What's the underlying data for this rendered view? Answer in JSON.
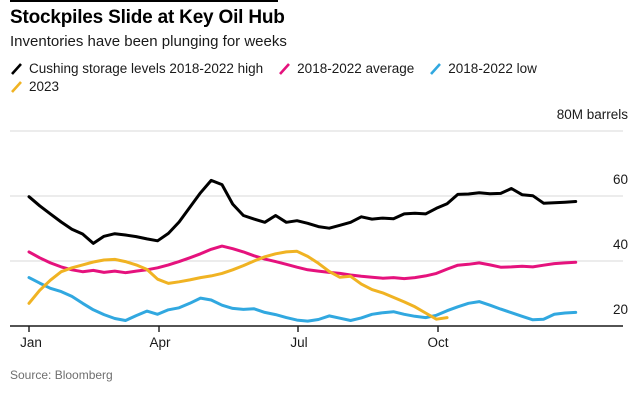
{
  "header": {
    "title": "Stockpiles Slide at Key Oil Hub",
    "subtitle": "Inventories have been plunging for weeks"
  },
  "legend": {
    "items": [
      {
        "label": "Cushing storage levels 2018-2022 high",
        "color": "#000000"
      },
      {
        "label": "2018-2022 average",
        "color": "#e5127d"
      },
      {
        "label": "2018-2022 low",
        "color": "#31a8e0"
      },
      {
        "label": "2023",
        "color": "#f0b323"
      }
    ]
  },
  "axis": {
    "unit_label": "80M barrels",
    "y_tick_labels": [
      "60",
      "40",
      "20"
    ],
    "x_tick_labels": [
      "Jan",
      "Apr",
      "Jul",
      "Oct"
    ]
  },
  "source": "Source: Bloomberg",
  "chart_data": {
    "type": "line",
    "title": "Stockpiles Slide at Key Oil Hub",
    "subtitle": "Inventories have been plunging for weeks",
    "xlabel": "",
    "ylabel": "80M barrels",
    "x_mode": "weekly, Jan through Dec (index 0-51)",
    "x_tick_labels": [
      "Jan",
      "Apr",
      "Jul",
      "Oct"
    ],
    "ylim": [
      20,
      80
    ],
    "y_gridlines": [
      80,
      60,
      40,
      20
    ],
    "grid": true,
    "legend_position": "top",
    "series": [
      {
        "name": "Cushing storage levels 2018-2022 high",
        "color": "#000000",
        "values": [
          59.8,
          57.0,
          54.5,
          52.0,
          49.8,
          48.3,
          45.4,
          47.6,
          48.4,
          48.0,
          47.5,
          46.8,
          46.2,
          48.5,
          52.0,
          56.5,
          61.0,
          64.8,
          63.5,
          57.5,
          54.0,
          52.9,
          51.9,
          54.0,
          51.9,
          52.4,
          51.6,
          50.6,
          50.1,
          51.0,
          51.9,
          53.6,
          52.9,
          53.2,
          53.0,
          54.5,
          54.7,
          54.5,
          56.2,
          57.6,
          60.5,
          60.6,
          61.0,
          60.7,
          60.8,
          62.3,
          60.4,
          60.1,
          57.8,
          57.9,
          58.1,
          58.3
        ]
      },
      {
        "name": "2018-2022 average",
        "color": "#e5127d",
        "values": [
          42.8,
          41.0,
          39.4,
          38.2,
          37.3,
          36.7,
          37.1,
          36.5,
          36.9,
          36.4,
          36.9,
          37.3,
          37.9,
          38.8,
          39.8,
          41.0,
          42.2,
          43.6,
          44.6,
          43.8,
          42.8,
          41.6,
          40.6,
          39.8,
          39.0,
          38.1,
          37.3,
          36.9,
          36.5,
          36.2,
          35.7,
          35.3,
          35.0,
          34.7,
          34.9,
          34.6,
          34.9,
          35.4,
          36.2,
          37.5,
          38.7,
          39.0,
          39.4,
          38.8,
          38.1,
          38.2,
          38.4,
          38.2,
          38.7,
          39.2,
          39.4,
          39.6
        ]
      },
      {
        "name": "2018-2022 low",
        "color": "#31a8e0",
        "values": [
          34.9,
          33.2,
          31.6,
          30.6,
          29.1,
          27.0,
          25.0,
          23.5,
          22.3,
          21.7,
          23.2,
          24.6,
          23.6,
          25.0,
          25.6,
          27.0,
          28.6,
          28.0,
          26.4,
          25.4,
          25.1,
          25.3,
          24.2,
          23.5,
          22.6,
          21.8,
          21.5,
          22.0,
          23.1,
          22.4,
          21.7,
          22.5,
          23.6,
          24.1,
          24.4,
          23.6,
          23.0,
          22.6,
          23.3,
          24.7,
          25.9,
          27.0,
          27.5,
          26.4,
          25.2,
          24.1,
          23.0,
          21.9,
          22.1,
          23.6,
          24.0,
          24.2
        ]
      },
      {
        "name": "2023",
        "color": "#f0b323",
        "values": [
          27.0,
          31.0,
          34.1,
          36.7,
          37.9,
          38.8,
          39.7,
          40.3,
          40.5,
          39.8,
          38.8,
          37.4,
          34.4,
          33.1,
          33.6,
          34.2,
          34.9,
          35.4,
          36.2,
          37.3,
          38.6,
          40.0,
          41.3,
          42.2,
          42.8,
          43.0,
          41.4,
          39.3,
          36.8,
          35.0,
          35.3,
          32.9,
          31.2,
          30.2,
          28.8,
          27.4,
          25.9,
          24.0,
          22.1,
          22.6
        ]
      }
    ],
    "annotations": [],
    "source": "Source: Bloomberg"
  }
}
